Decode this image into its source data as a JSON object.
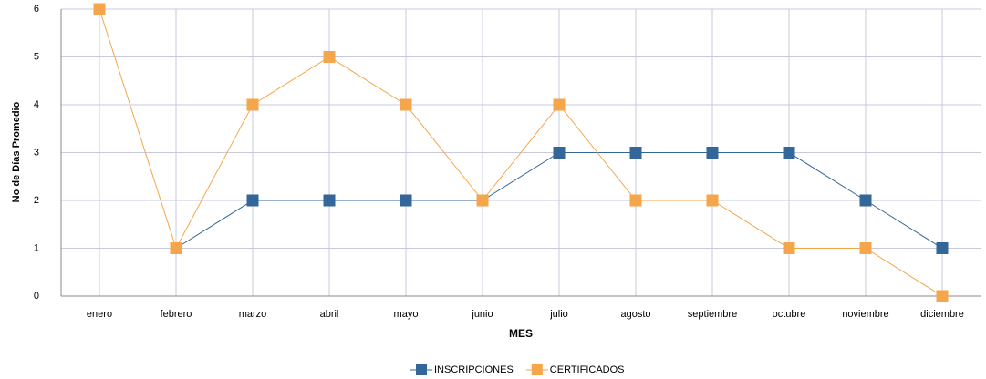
{
  "chart_data": {
    "type": "line",
    "x_label": "MES",
    "y_label": "No de Días Promedio",
    "categories": [
      "enero",
      "febrero",
      "marzo",
      "abril",
      "mayo",
      "junio",
      "julio",
      "agosto",
      "septiembre",
      "octubre",
      "noviembre",
      "diciembre"
    ],
    "series": [
      {
        "name": "INSCRIPCIONES",
        "color": "#336699",
        "values": [
          null,
          1,
          2,
          2,
          2,
          2,
          3,
          3,
          3,
          3,
          2,
          1
        ]
      },
      {
        "name": "CERTIFICADOS",
        "color": "#f5a54a",
        "values": [
          6,
          1,
          4,
          5,
          4,
          2,
          4,
          2,
          2,
          1,
          1,
          0
        ]
      }
    ],
    "ylim": [
      0,
      6
    ],
    "yticks": [
      0,
      1,
      2,
      3,
      4,
      5,
      6
    ],
    "grid": true,
    "legend": "bottom"
  }
}
